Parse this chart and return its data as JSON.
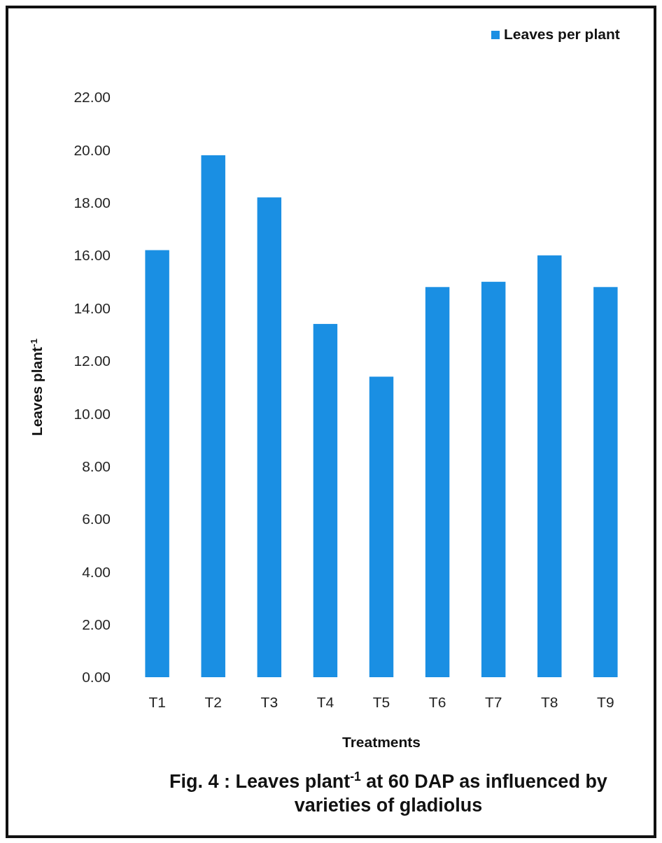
{
  "chart_data": {
    "type": "bar",
    "title": "Fig. 4 : Leaves plant$^{-1}$ at 60 DAP as influenced by varieties of gladiolus",
    "xlabel": "Treatments",
    "ylabel": "Leaves plant$^{-1}$",
    "categories": [
      "T1",
      "T2",
      "T3",
      "T4",
      "T5",
      "T6",
      "T7",
      "T8",
      "T9"
    ],
    "series": [
      {
        "name": "Leaves per plant",
        "color": "#1a8fe3",
        "values": [
          16.2,
          19.8,
          18.2,
          13.4,
          11.4,
          14.8,
          15.0,
          16.0,
          14.8
        ]
      }
    ],
    "ylim": [
      0,
      22
    ],
    "yticks": [
      {
        "value": 0,
        "label": "0.00"
      },
      {
        "value": 2,
        "label": "2.00"
      },
      {
        "value": 4,
        "label": "4.00"
      },
      {
        "value": 6,
        "label": "6.00"
      },
      {
        "value": 8,
        "label": "8.00"
      },
      {
        "value": 10,
        "label": "10.00"
      },
      {
        "value": 12,
        "label": "12.00"
      },
      {
        "value": 14,
        "label": "14.00"
      },
      {
        "value": 16,
        "label": "16.00"
      },
      {
        "value": 18,
        "label": "18.00"
      },
      {
        "value": 20,
        "label": "20.00"
      },
      {
        "value": 22,
        "label": "22.00"
      }
    ],
    "grid": false,
    "legend": "top right"
  }
}
